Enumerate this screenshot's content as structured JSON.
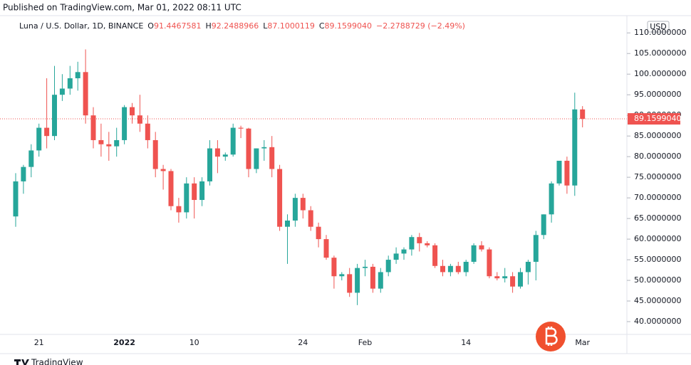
{
  "chart_data": {
    "type": "candlestick",
    "published": "Published on TradingView.com, Mar 01, 2022 08:11 UTC",
    "title": "Luna / U.S. Dollar, 1D, BINANCE",
    "ohlc_labels": [
      "O",
      "H",
      "L",
      "C"
    ],
    "change": "−2.2788729 (−2.49%)",
    "currency": "USD",
    "last_label": "89.1599040",
    "brand": "TradingView",
    "up_color": "#26a69a",
    "down_color": "#ef5350",
    "categories": [
      null,
      null,
      null,
      "21",
      null,
      null,
      null,
      null,
      null,
      null,
      null,
      null,
      null,
      null,
      "2022",
      null,
      null,
      null,
      null,
      null,
      null,
      null,
      null,
      "10",
      null,
      null,
      null,
      null,
      null,
      null,
      null,
      null,
      null,
      null,
      null,
      null,
      null,
      "24",
      null,
      null,
      null,
      null,
      null,
      null,
      null,
      "Feb",
      null,
      null,
      null,
      null,
      null,
      null,
      null,
      null,
      null,
      null,
      null,
      null,
      "14",
      null,
      null,
      null,
      null,
      null,
      null,
      null,
      null,
      null,
      null,
      null,
      null,
      null,
      null,
      "Mar"
    ],
    "open": [
      65.5,
      74,
      77.5,
      81.5,
      87,
      85,
      95,
      96.5,
      99,
      100.5,
      90,
      84,
      83,
      82.5,
      84,
      92,
      90,
      88,
      84,
      77,
      76.5,
      68,
      66.5,
      73.5,
      69.5,
      74,
      82,
      80,
      80.5,
      87,
      86.8,
      77,
      82,
      82.3,
      77,
      63,
      64.5,
      70,
      67,
      63,
      60,
      55.5,
      51,
      51.5,
      47,
      53,
      53.3,
      48,
      52,
      55,
      56.5,
      57.5,
      60.5,
      59,
      58.5,
      53.5,
      52,
      53.5,
      52,
      54.5,
      58.5,
      57.5,
      51,
      50.5,
      51,
      48.5,
      52,
      54.5,
      61,
      66,
      73.5,
      79,
      73,
      91.4467581
    ],
    "high": [
      76,
      78,
      83,
      88,
      99,
      102,
      100,
      102,
      103,
      106,
      92,
      88,
      86,
      87,
      92.5,
      93,
      95,
      90,
      86,
      78,
      77,
      70,
      75,
      75,
      75,
      84,
      84,
      81,
      88,
      87.5,
      87,
      82,
      84,
      85,
      78,
      66,
      71,
      71,
      68,
      64,
      61,
      56,
      52,
      53,
      54,
      55,
      54,
      53,
      56,
      58,
      58,
      61,
      61.5,
      59.5,
      59,
      55,
      54,
      54.5,
      55,
      59,
      59.5,
      58,
      52,
      53,
      52,
      53,
      55,
      62,
      66,
      74,
      79,
      80,
      95.5,
      92.2488966
    ],
    "low": [
      63,
      71,
      75,
      80,
      82,
      84,
      93.5,
      95,
      96,
      88,
      82,
      80,
      79,
      80,
      83,
      88,
      86,
      82,
      75,
      72,
      67,
      64,
      65,
      65,
      68,
      73,
      76,
      79,
      80,
      84.5,
      75,
      76,
      79,
      75,
      62,
      54,
      63,
      65,
      62,
      58,
      55,
      48,
      50,
      46,
      44,
      51,
      47,
      47,
      51,
      54,
      55,
      56,
      57,
      58,
      53,
      51,
      51,
      51.5,
      51,
      54,
      57,
      50.5,
      50,
      49.5,
      47,
      48,
      49,
      50,
      60,
      64,
      73,
      71,
      70.5,
      87.1000119
    ],
    "close": [
      74,
      77.5,
      81.5,
      87,
      85,
      95,
      96.5,
      99,
      100.5,
      90,
      84,
      83,
      82.5,
      84,
      92,
      90,
      88,
      84,
      77,
      76.5,
      68,
      66.5,
      73.5,
      69.5,
      74,
      82,
      80,
      80.5,
      87,
      86.8,
      77,
      82,
      82.3,
      77,
      63,
      64.5,
      70,
      67,
      63,
      60,
      55.5,
      51,
      51.5,
      47,
      53,
      53.3,
      48,
      52,
      55,
      56.5,
      57.5,
      60.5,
      59,
      58.5,
      53.5,
      52,
      53.5,
      52,
      54.5,
      58.5,
      57.5,
      51,
      50.5,
      51,
      48.5,
      52,
      54.5,
      61,
      66,
      73.5,
      79,
      73,
      91.45,
      89.159904
    ],
    "ylim": [
      36.9,
      112.8
    ],
    "yticks": [
      {
        "value": 40,
        "label": "40.0000000"
      },
      {
        "value": 45,
        "label": "45.0000000"
      },
      {
        "value": 50,
        "label": "50.0000000"
      },
      {
        "value": 55,
        "label": "55.0000000"
      },
      {
        "value": 60,
        "label": "60.0000000"
      },
      {
        "value": 65,
        "label": "65.0000000"
      },
      {
        "value": 70,
        "label": "70.0000000"
      },
      {
        "value": 75,
        "label": "75.0000000"
      },
      {
        "value": 80,
        "label": "80.0000000"
      },
      {
        "value": 85,
        "label": "85.0000000"
      },
      {
        "value": 90,
        "label": "90.0000000"
      },
      {
        "value": 95,
        "label": "95.0000000"
      },
      {
        "value": 100,
        "label": "100.0000000"
      },
      {
        "value": 105,
        "label": "105.0000000"
      },
      {
        "value": 110,
        "label": "110.0000000"
      }
    ],
    "grid": false
  }
}
